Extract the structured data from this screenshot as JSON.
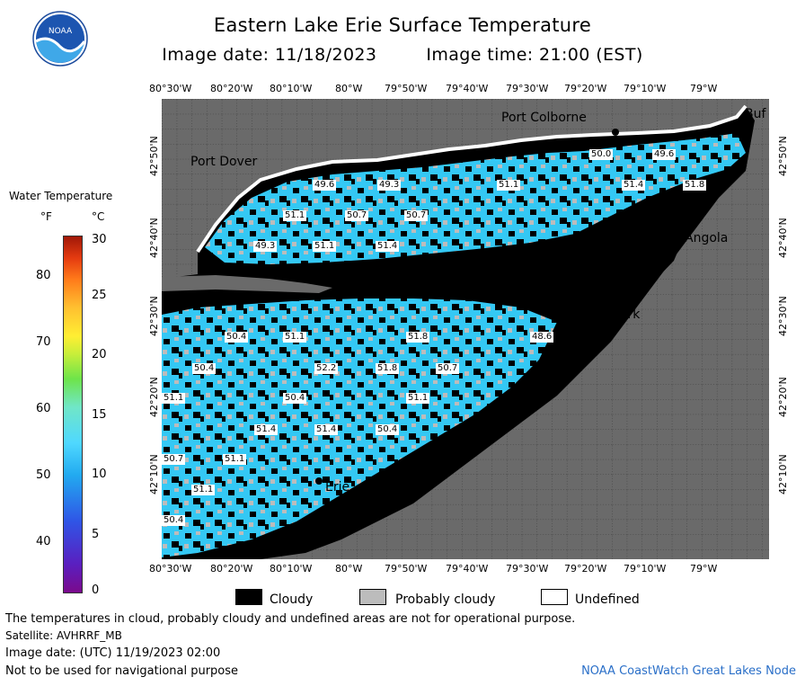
{
  "header": {
    "title": "Eastern Lake Erie Surface Temperature",
    "image_date": "Image date: 11/18/2023",
    "image_time": "Image time: 21:00 (EST)"
  },
  "logo": {
    "text": "NOAA"
  },
  "longitude_labels": [
    "80°30'W",
    "80°20'W",
    "80°10'W",
    "80°W",
    "79°50'W",
    "79°40'W",
    "79°30'W",
    "79°20'W",
    "79°10'W",
    "79°W"
  ],
  "latitude_labels": [
    "42°50'N",
    "42°40'N",
    "42°30'N",
    "42°20'N",
    "42°10'N"
  ],
  "places": [
    "Port Colborne",
    "Buf",
    "Port Dover",
    "Angola",
    "Dunkirk",
    "Erie"
  ],
  "temperature_labels": [
    "49.6",
    "49.3",
    "51.1",
    "50.0",
    "49.6",
    "51.4",
    "51.8",
    "51.1",
    "50.7",
    "50.7",
    "49.3",
    "51.1",
    "51.4",
    "50.4",
    "51.1",
    "51.8",
    "48.6",
    "50.4",
    "52.2",
    "51.8",
    "50.7",
    "51.1",
    "50.4",
    "51.1",
    "51.4",
    "51.4",
    "50.4",
    "50.7",
    "51.1",
    "51.1",
    "50.4"
  ],
  "legend": {
    "title": "Water Temperature",
    "unit_f": "°F",
    "unit_c": "°C",
    "f_ticks": [
      "80",
      "70",
      "60",
      "50",
      "40"
    ],
    "c_ticks": [
      "30",
      "25",
      "20",
      "15",
      "10",
      "5",
      "0"
    ]
  },
  "key": {
    "cloudy": "Cloudy",
    "probably_cloudy": "Probably cloudy",
    "undefined": "Undefined",
    "colors": {
      "cloudy": "#000000",
      "probably_cloudy": "#bcbcbc",
      "undefined": "#ffffff"
    }
  },
  "footer": {
    "note": "The temperatures in cloud, probably cloudy and undefined areas are not for operational purpose.",
    "satellite": "Satellite: AVHRRF_MB",
    "utc_date": "Image date: (UTC) 11/19/2023  02:00",
    "nav": "Not to be used for navigational purpose",
    "credit": "NOAA CoastWatch Great Lakes Node"
  },
  "colors": {
    "land": "#6a6a6a",
    "water": "#34c8f4",
    "grid": "#3a3a3a"
  }
}
